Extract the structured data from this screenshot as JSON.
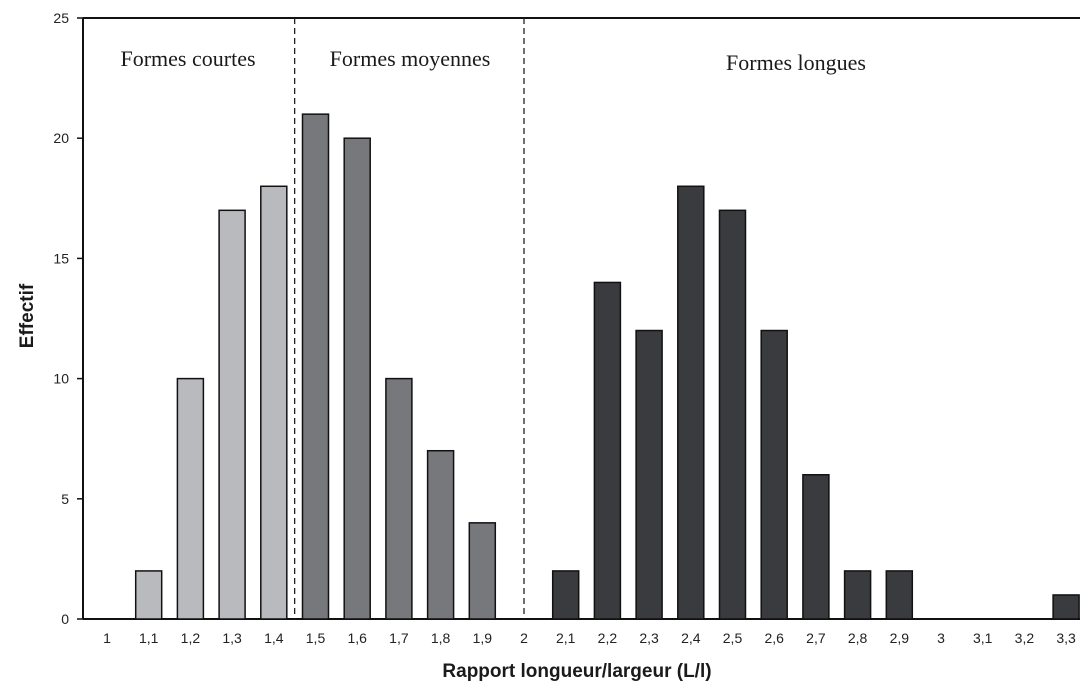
{
  "chart_data": {
    "type": "bar",
    "title": "",
    "xlabel": "Rapport longueur/largeur (L/l)",
    "ylabel": "Effectif",
    "ylim": [
      0,
      25
    ],
    "yticks": [
      0,
      5,
      10,
      15,
      20,
      25
    ],
    "categories": [
      "1",
      "1,1",
      "1,2",
      "1,3",
      "1,4",
      "1,5",
      "1,6",
      "1,7",
      "1,8",
      "1,9",
      "2",
      "2,1",
      "2,2",
      "2,3",
      "2,4",
      "2,5",
      "2,6",
      "2,7",
      "2,8",
      "2,9",
      "3",
      "3,1",
      "3,2",
      "3,3"
    ],
    "series": [
      {
        "colour": "#b8babe",
        "values": [
          0,
          2,
          10,
          17,
          18,
          0,
          0,
          0,
          0,
          0,
          0,
          0,
          0,
          0,
          0,
          0,
          0,
          0,
          0,
          0,
          0,
          0,
          0,
          0
        ]
      },
      {
        "colour": "#77787c",
        "values": [
          0,
          0,
          0,
          0,
          0,
          21,
          20,
          10,
          7,
          4,
          0,
          0,
          0,
          0,
          0,
          0,
          0,
          0,
          0,
          0,
          0,
          0,
          0,
          0
        ]
      },
      {
        "colour": "#3a3b3e",
        "values": [
          0,
          0,
          0,
          0,
          0,
          0,
          0,
          0,
          0,
          0,
          0,
          2,
          14,
          12,
          18,
          17,
          12,
          6,
          2,
          2,
          0,
          0,
          0,
          1
        ]
      }
    ],
    "zones": [
      {
        "label": "Formes courtes"
      },
      {
        "label": "Formes moyennes"
      },
      {
        "label": "Formes longues"
      }
    ],
    "dividers": [
      1.45,
      2.0
    ],
    "grid": false,
    "legend": "none"
  }
}
